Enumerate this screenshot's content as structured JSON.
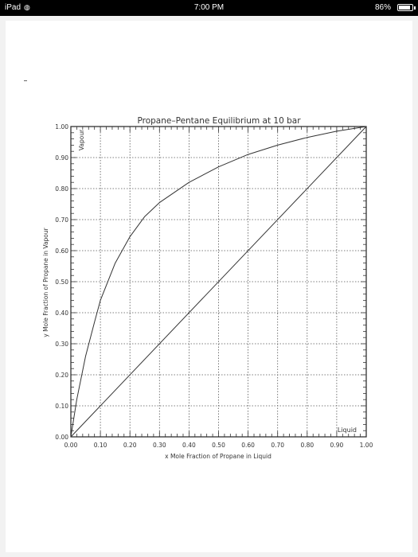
{
  "status_bar": {
    "device": "iPad",
    "time": "7:00 PM",
    "battery": "86%",
    "battery_level": 0.86
  },
  "chart_data": {
    "type": "line",
    "title": "Propane–Pentane Equilibrium at 10 bar",
    "xlabel": "x Mole Fraction of Propane in Liquid",
    "ylabel": "y Mole Fraction of Propane in Vapour",
    "xlim": [
      0,
      1
    ],
    "ylim": [
      0,
      1
    ],
    "x_ticks": [
      "0.00",
      "0.10",
      "0.20",
      "0.30",
      "0.40",
      "0.50",
      "0.60",
      "0.70",
      "0.80",
      "0.90",
      "1.00"
    ],
    "y_ticks": [
      "0.00",
      "0.10",
      "0.20",
      "0.30",
      "0.40",
      "0.50",
      "0.60",
      "0.70",
      "0.80",
      "0.90",
      "1.00"
    ],
    "grid": true,
    "annotations": [
      "Vapour",
      "Liquid"
    ],
    "series": [
      {
        "x": [
          0,
          0.02,
          0.05,
          0.08,
          0.1,
          0.15,
          0.2,
          0.25,
          0.3,
          0.4,
          0.5,
          0.6,
          0.7,
          0.8,
          0.9,
          1.0
        ],
        "y": [
          0,
          0.12,
          0.26,
          0.37,
          0.44,
          0.56,
          0.645,
          0.71,
          0.755,
          0.82,
          0.87,
          0.91,
          0.94,
          0.965,
          0.985,
          1.0
        ]
      },
      {
        "x": [
          0,
          1
        ],
        "y": [
          0,
          1
        ]
      }
    ]
  }
}
